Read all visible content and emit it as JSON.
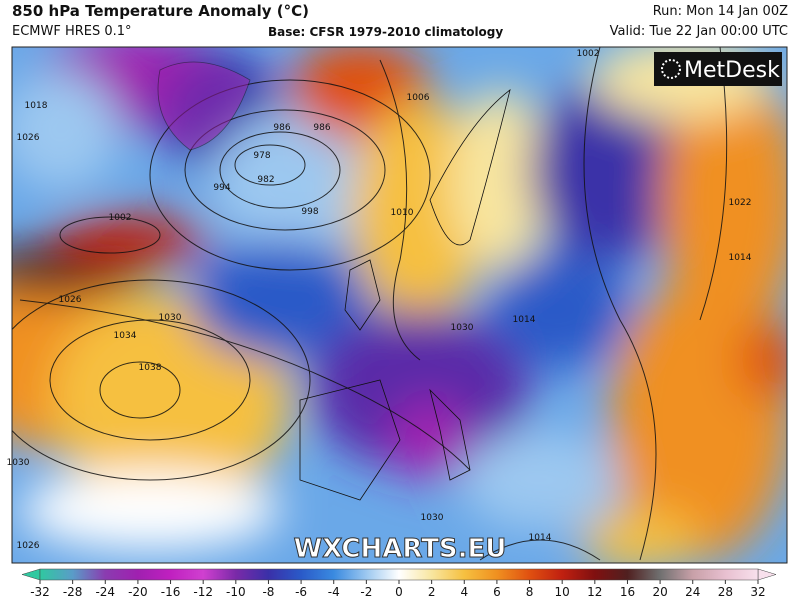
{
  "header": {
    "title": "850 hPa Temperature Anomaly (°C)",
    "model": "ECMWF HRES 0.1°",
    "base": "Base: CFSR 1979-2010 climatology",
    "run": "Run: Mon 14 Jan 00Z",
    "valid": "Valid: Tue 22 Jan 00:00 UTC"
  },
  "logo": "MetDesk",
  "watermark": "WXCHARTS.EU",
  "isobar_labels": [
    "1018",
    "1026",
    "1002",
    "1026",
    "1030",
    "1034",
    "1038",
    "1030",
    "1026",
    "978",
    "982",
    "986",
    "994",
    "998",
    "986",
    "1006",
    "1010",
    "1002",
    "1014",
    "1030",
    "1030",
    "1014",
    "1022",
    "1014"
  ],
  "colorbar": {
    "ticks": [
      -32,
      -28,
      -24,
      -20,
      -16,
      -12,
      -10,
      -8,
      -6,
      -4,
      -2,
      0,
      2,
      4,
      6,
      8,
      10,
      12,
      16,
      20,
      24,
      28,
      32
    ],
    "colors": [
      "#30c8a0",
      "#5a9cc8",
      "#8a3cb0",
      "#a020b0",
      "#c020c0",
      "#d040d0",
      "#7a2aa8",
      "#3a30a8",
      "#2a5ac8",
      "#3a8ae0",
      "#9cc8f0",
      "#ffffff",
      "#f8e6a0",
      "#f6c040",
      "#f09020",
      "#e05010",
      "#c02010",
      "#801010",
      "#502020",
      "#707070",
      "#c8a0a8",
      "#e8c0d0",
      "#f8e0ec"
    ]
  }
}
